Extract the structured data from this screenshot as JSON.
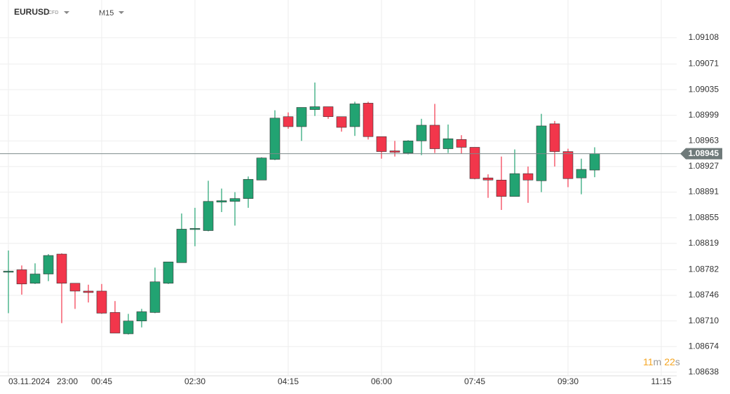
{
  "chart_data": {
    "type": "candlestick",
    "symbol": "EURUSD",
    "symbol_tag": "CFD",
    "timeframe": "M15",
    "date_label": "03.11.2024",
    "categories": [
      "23:00",
      null,
      null,
      null,
      null,
      null,
      null,
      "00:45",
      null,
      null,
      null,
      null,
      null,
      null,
      "02:30",
      null,
      null,
      null,
      null,
      null,
      null,
      "04:15",
      null,
      null,
      null,
      null,
      null,
      null,
      "06:00",
      null,
      null,
      null,
      null,
      null,
      null,
      "07:45",
      null,
      null,
      null,
      null,
      null,
      null,
      "09:30",
      null,
      null,
      null,
      null,
      null,
      null,
      "11:15"
    ],
    "open": [
      1.08779,
      1.08782,
      1.08763,
      1.08776,
      1.08804,
      1.08763,
      1.08752,
      1.08752,
      1.08722,
      1.08692,
      1.0871,
      1.08722,
      1.08763,
      1.08792,
      1.08839,
      1.08837,
      1.08877,
      1.08878,
      1.08882,
      1.08908,
      1.08937,
      1.08997,
      1.08983,
      1.09007,
      1.09011,
      1.08997,
      1.08983,
      1.09016,
      1.08969,
      1.08949,
      1.08946,
      1.08963,
      1.08985,
      1.08952,
      1.08965,
      1.08954,
      1.08911,
      1.08908,
      1.08885,
      1.08917,
      1.08907,
      1.08987,
      1.08948,
      1.08911,
      1.08922,
      null,
      null,
      null,
      null,
      null
    ],
    "high": [
      1.08809,
      1.08788,
      1.08791,
      1.08804,
      1.08805,
      1.08763,
      1.08761,
      1.08762,
      1.08738,
      1.0872,
      1.08727,
      1.08785,
      1.08793,
      1.08861,
      1.08869,
      1.08907,
      1.08896,
      1.08891,
      1.08913,
      1.0894,
      1.09006,
      1.09003,
      1.0901,
      1.09045,
      1.09011,
      1.08997,
      1.09018,
      1.09018,
      1.08969,
      1.08963,
      1.08964,
      1.08994,
      1.09015,
      1.08986,
      1.08971,
      1.08954,
      1.08916,
      1.08941,
      1.08951,
      1.08927,
      1.09001,
      1.08991,
      1.08952,
      1.08938,
      1.08954,
      null,
      null,
      null,
      null,
      null
    ],
    "low": [
      1.08721,
      1.08747,
      1.08762,
      1.08766,
      1.08707,
      1.08727,
      1.08736,
      1.0872,
      1.08693,
      1.08691,
      1.08701,
      1.08721,
      1.08762,
      1.08792,
      1.08815,
      1.08836,
      1.08863,
      1.08844,
      1.08869,
      1.08908,
      1.08936,
      1.0898,
      1.08963,
      1.08998,
      1.08994,
      1.08976,
      1.0897,
      1.08965,
      1.08938,
      1.08941,
      1.08944,
      1.08943,
      1.08946,
      1.08946,
      1.08945,
      1.08909,
      1.08883,
      1.08866,
      1.08885,
      1.08876,
      1.08891,
      1.08927,
      1.08898,
      1.08888,
      1.08912,
      null,
      null,
      null,
      null,
      null
    ],
    "close": [
      1.0878,
      1.08762,
      1.08776,
      1.08802,
      1.08763,
      1.08752,
      1.0875,
      1.08721,
      1.08693,
      1.0871,
      1.08723,
      1.08765,
      1.08793,
      1.08839,
      1.0884,
      1.08878,
      1.08879,
      1.08882,
      1.08909,
      1.08939,
      1.08995,
      1.08983,
      1.0901,
      1.09011,
      1.08997,
      1.08982,
      1.09015,
      1.08969,
      1.08948,
      1.08947,
      1.08963,
      1.08985,
      1.08952,
      1.08966,
      1.08954,
      1.0891,
      1.08908,
      1.08885,
      1.08917,
      1.08908,
      1.08984,
      1.08948,
      1.0891,
      1.08923,
      1.08945,
      null,
      null,
      null,
      null,
      null
    ],
    "up_color": "#22a372",
    "down_color": "#f2364b",
    "ylim": [
      1.08633,
      1.09156
    ],
    "yticks": [
      1.09108,
      1.09071,
      1.09035,
      1.08999,
      1.08963,
      1.08927,
      1.08891,
      1.08855,
      1.08819,
      1.08782,
      1.08746,
      {
        "value": 1.0871,
        "label": "1.08710"
      },
      1.08674,
      1.08638
    ],
    "grid": true,
    "last_price": 1.08945,
    "timer": {
      "minutes": 11,
      "minutes_unit": "m",
      "seconds": 22,
      "seconds_unit": "s"
    }
  }
}
